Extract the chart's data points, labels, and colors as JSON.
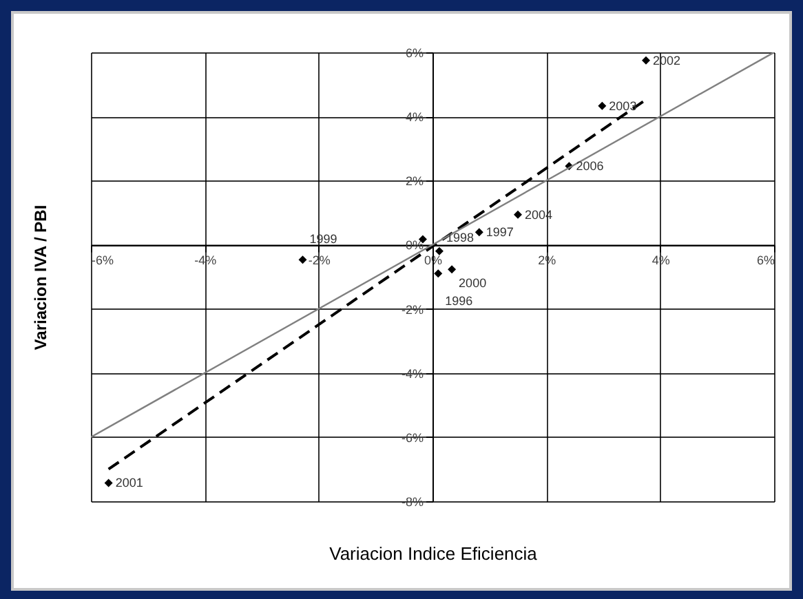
{
  "chart_data": {
    "type": "scatter",
    "xlabel": "Variacion Indice Eficiencia",
    "ylabel": "Variacion IVA / PBI",
    "xlim": [
      -6,
      6
    ],
    "ylim": [
      -8,
      6
    ],
    "xticks": [
      {
        "value": -6,
        "label": "-6%"
      },
      {
        "value": -4,
        "label": "-4%"
      },
      {
        "value": -2,
        "label": "-2%"
      },
      {
        "value": 0,
        "label": "0%"
      },
      {
        "value": 2,
        "label": "2%"
      },
      {
        "value": 4,
        "label": "4%"
      },
      {
        "value": 6,
        "label": "6%"
      }
    ],
    "yticks": [
      {
        "value": -8,
        "label": "-8%"
      },
      {
        "value": -6,
        "label": "-6%"
      },
      {
        "value": -4,
        "label": "-4%"
      },
      {
        "value": -2,
        "label": "-2%"
      },
      {
        "value": 0,
        "label": "0%"
      },
      {
        "value": 2,
        "label": "2%"
      },
      {
        "value": 4,
        "label": "4%"
      },
      {
        "value": 6,
        "label": "6%"
      }
    ],
    "grid": true,
    "series": [
      {
        "marker": "diamond",
        "color": "#000000",
        "x": [
          3.75,
          2.98,
          2.4,
          1.5,
          0.82,
          -0.17,
          0.12,
          0.34,
          0.1,
          -2.28,
          -5.69
        ],
        "values": [
          5.75,
          4.33,
          2.45,
          0.94,
          0.39,
          0.17,
          -0.2,
          -0.77,
          -0.9,
          -0.47,
          -7.43
        ]
      },
      {
        "type": "line",
        "color": "#000000",
        "line_style": "dashed",
        "x": [
          -5.69,
          3.73
        ],
        "values": [
          -7.0,
          4.5
        ]
      },
      {
        "type": "line",
        "color": "#808080",
        "line_style": "solid",
        "x": [
          -6,
          6
        ],
        "values": [
          -6,
          6
        ]
      }
    ],
    "annotations": [
      {
        "text": "2002",
        "x": 3.75,
        "y": 5.75
      },
      {
        "text": "2003",
        "x": 2.98,
        "y": 4.33
      },
      {
        "text": "2006",
        "x": 2.4,
        "y": 2.45
      },
      {
        "text": "2004",
        "x": 1.5,
        "y": 0.94
      },
      {
        "text": "1997",
        "x": 0.82,
        "y": 0.39
      },
      {
        "text": "1999",
        "x": -2.28,
        "y": -0.47
      },
      {
        "text": "2000",
        "x": 0.34,
        "y": -0.77
      },
      {
        "text": "1998",
        "x": 0.12,
        "y": -0.2
      },
      {
        "text": "1996",
        "x": 0.1,
        "y": -0.9
      },
      {
        "text": "2001",
        "x": -5.69,
        "y": -7.43
      }
    ]
  }
}
